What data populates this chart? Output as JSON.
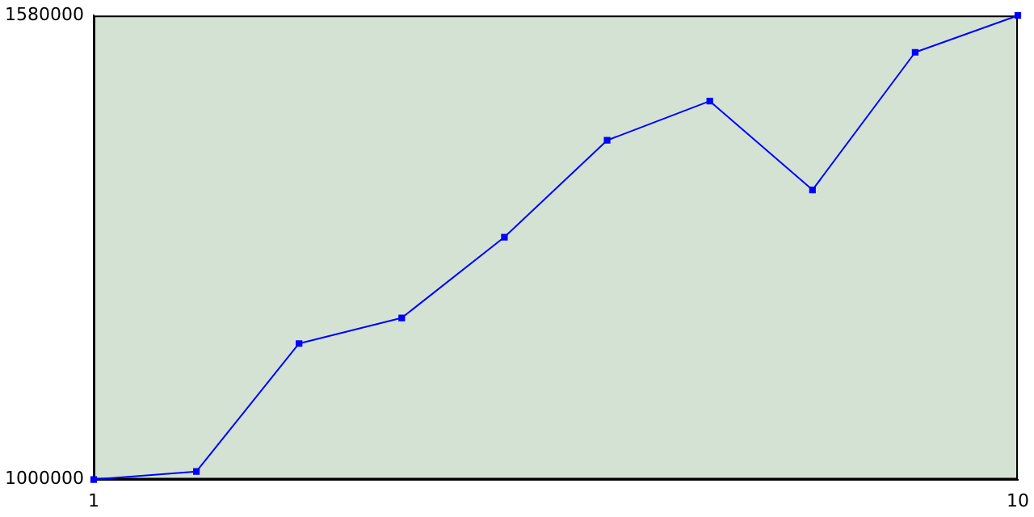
{
  "chart_data": {
    "type": "line",
    "x": [
      1,
      2,
      3,
      4,
      5,
      6,
      7,
      8,
      9,
      10
    ],
    "series": [
      {
        "color": "#0000ff",
        "values": [
          1000000,
          1010000,
          1170000,
          1202000,
          1303000,
          1424000,
          1473000,
          1362000,
          1534000,
          1580000
        ]
      }
    ],
    "xlim": [
      1,
      10
    ],
    "xticks": [
      1,
      10
    ],
    "ylim": [
      1000000,
      1580000
    ],
    "yticks": [
      1000000,
      1580000
    ],
    "grid": false,
    "legend": false,
    "marker": "square",
    "line_style": "solid"
  }
}
